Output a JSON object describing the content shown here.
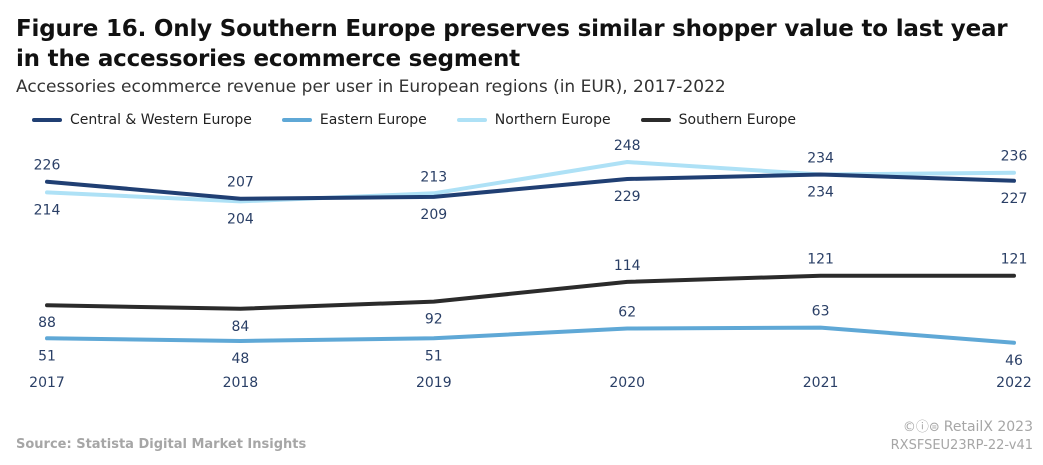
{
  "header": {
    "title": "Figure 16. Only Southern Europe preserves similar shopper value to last year in the accessories ecommerce segment",
    "subtitle": "Accessories ecommerce revenue per user in European regions (in EUR), 2017-2022"
  },
  "footer": {
    "source": "Source: Statista Digital Market Insights",
    "cc_icons": "©ⓘ⊜",
    "copyright": "RetailX 2023",
    "code": "RXSFSEU23RP-22-v41"
  },
  "colors": {
    "central": "#203f73",
    "eastern": "#5fa8d6",
    "northern": "#aee1f6",
    "southern": "#2b2b2b",
    "label": "#2a3f66"
  },
  "chart_data": {
    "type": "line",
    "title": "Figure 16. Only Southern Europe preserves similar shopper value to last year in the accessories ecommerce segment",
    "subtitle": "Accessories ecommerce revenue per user in European regions (in EUR), 2017-2022",
    "xlabel": "",
    "ylabel": "",
    "categories": [
      "2017",
      "2018",
      "2019",
      "2020",
      "2021",
      "2022"
    ],
    "ylim": [
      40,
      250
    ],
    "grid": false,
    "legend": "top-left",
    "series": [
      {
        "key": "central",
        "name": "Central & Western Europe",
        "values": [
          226,
          207,
          209,
          229,
          234,
          227
        ],
        "label_pos": [
          "above",
          "above",
          "below",
          "below",
          "below",
          "below"
        ]
      },
      {
        "key": "eastern",
        "name": "Eastern Europe",
        "values": [
          51,
          48,
          51,
          62,
          63,
          46
        ],
        "label_pos": [
          "below",
          "below",
          "below",
          "above",
          "above",
          "below"
        ]
      },
      {
        "key": "northern",
        "name": "Northern Europe",
        "values": [
          214,
          204,
          213,
          248,
          234,
          236
        ],
        "label_pos": [
          "below",
          "below",
          "above",
          "above",
          "above",
          "above"
        ]
      },
      {
        "key": "southern",
        "name": "Southern Europe",
        "values": [
          88,
          84,
          92,
          114,
          121,
          121
        ],
        "label_pos": [
          "below",
          "below",
          "below",
          "above",
          "above",
          "above"
        ]
      }
    ]
  }
}
